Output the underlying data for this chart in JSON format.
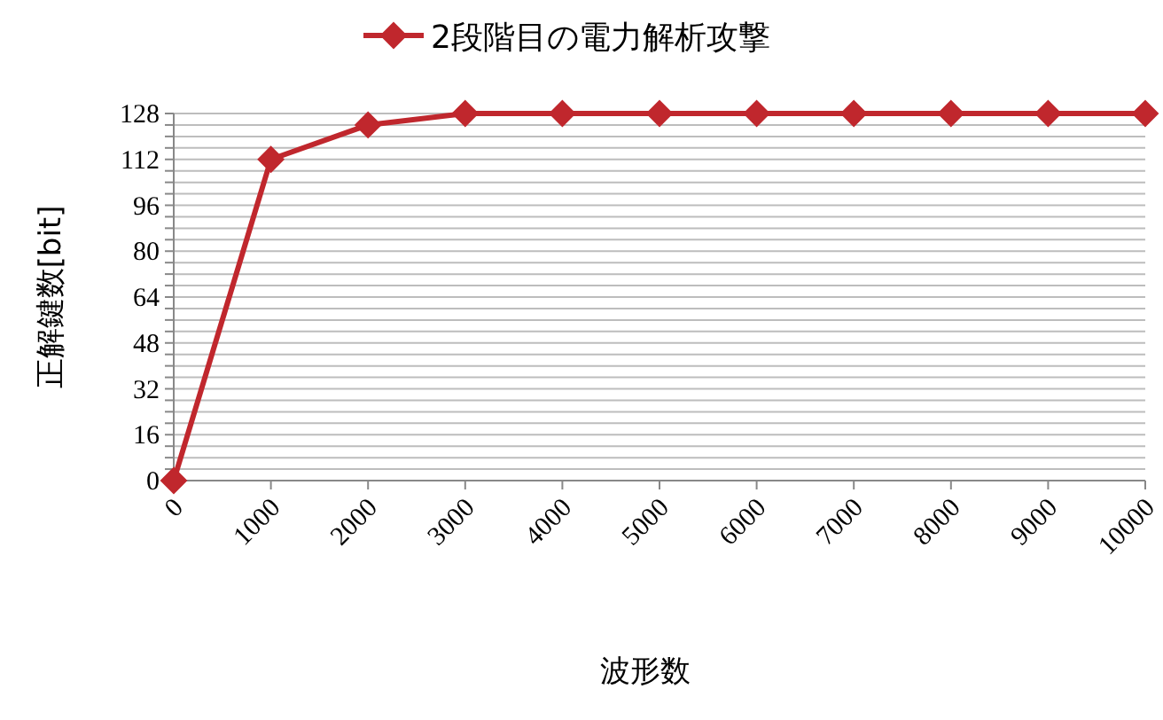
{
  "chart_data": {
    "type": "line",
    "xlabel": "波形数",
    "ylabel": "正解鍵数[bit]",
    "categories": [
      "0",
      "1000",
      "2000",
      "3000",
      "4000",
      "5000",
      "6000",
      "7000",
      "8000",
      "9000",
      "10000"
    ],
    "series": [
      {
        "name": "2段階目の電力解析攻撃",
        "color": "#c0272d",
        "values": [
          0,
          112,
          124,
          128,
          128,
          128,
          128,
          128,
          128,
          128,
          128
        ]
      }
    ],
    "ylim": [
      0,
      128
    ],
    "yticks": [
      0,
      {
        "value": 4,
        "label": null
      },
      {
        "value": 8,
        "label": null
      },
      {
        "value": 12,
        "label": null
      },
      16,
      {
        "value": 20,
        "label": null
      },
      {
        "value": 24,
        "label": null
      },
      {
        "value": 28,
        "label": null
      },
      32,
      {
        "value": 36,
        "label": null
      },
      {
        "value": 40,
        "label": null
      },
      {
        "value": 44,
        "label": null
      },
      48,
      {
        "value": 52,
        "label": null
      },
      {
        "value": 56,
        "label": null
      },
      {
        "value": 60,
        "label": null
      },
      64,
      {
        "value": 68,
        "label": null
      },
      {
        "value": 72,
        "label": null
      },
      {
        "value": 76,
        "label": null
      },
      80,
      {
        "value": 84,
        "label": null
      },
      {
        "value": 88,
        "label": null
      },
      {
        "value": 92,
        "label": null
      },
      96,
      {
        "value": 100,
        "label": null
      },
      {
        "value": 104,
        "label": null
      },
      {
        "value": 108,
        "label": null
      },
      112,
      {
        "value": 116,
        "label": null
      },
      {
        "value": 120,
        "label": null
      },
      {
        "value": 124,
        "label": null
      },
      128
    ],
    "grid": "y",
    "legend": "top",
    "marker": "diamond",
    "line_style": "solid"
  }
}
